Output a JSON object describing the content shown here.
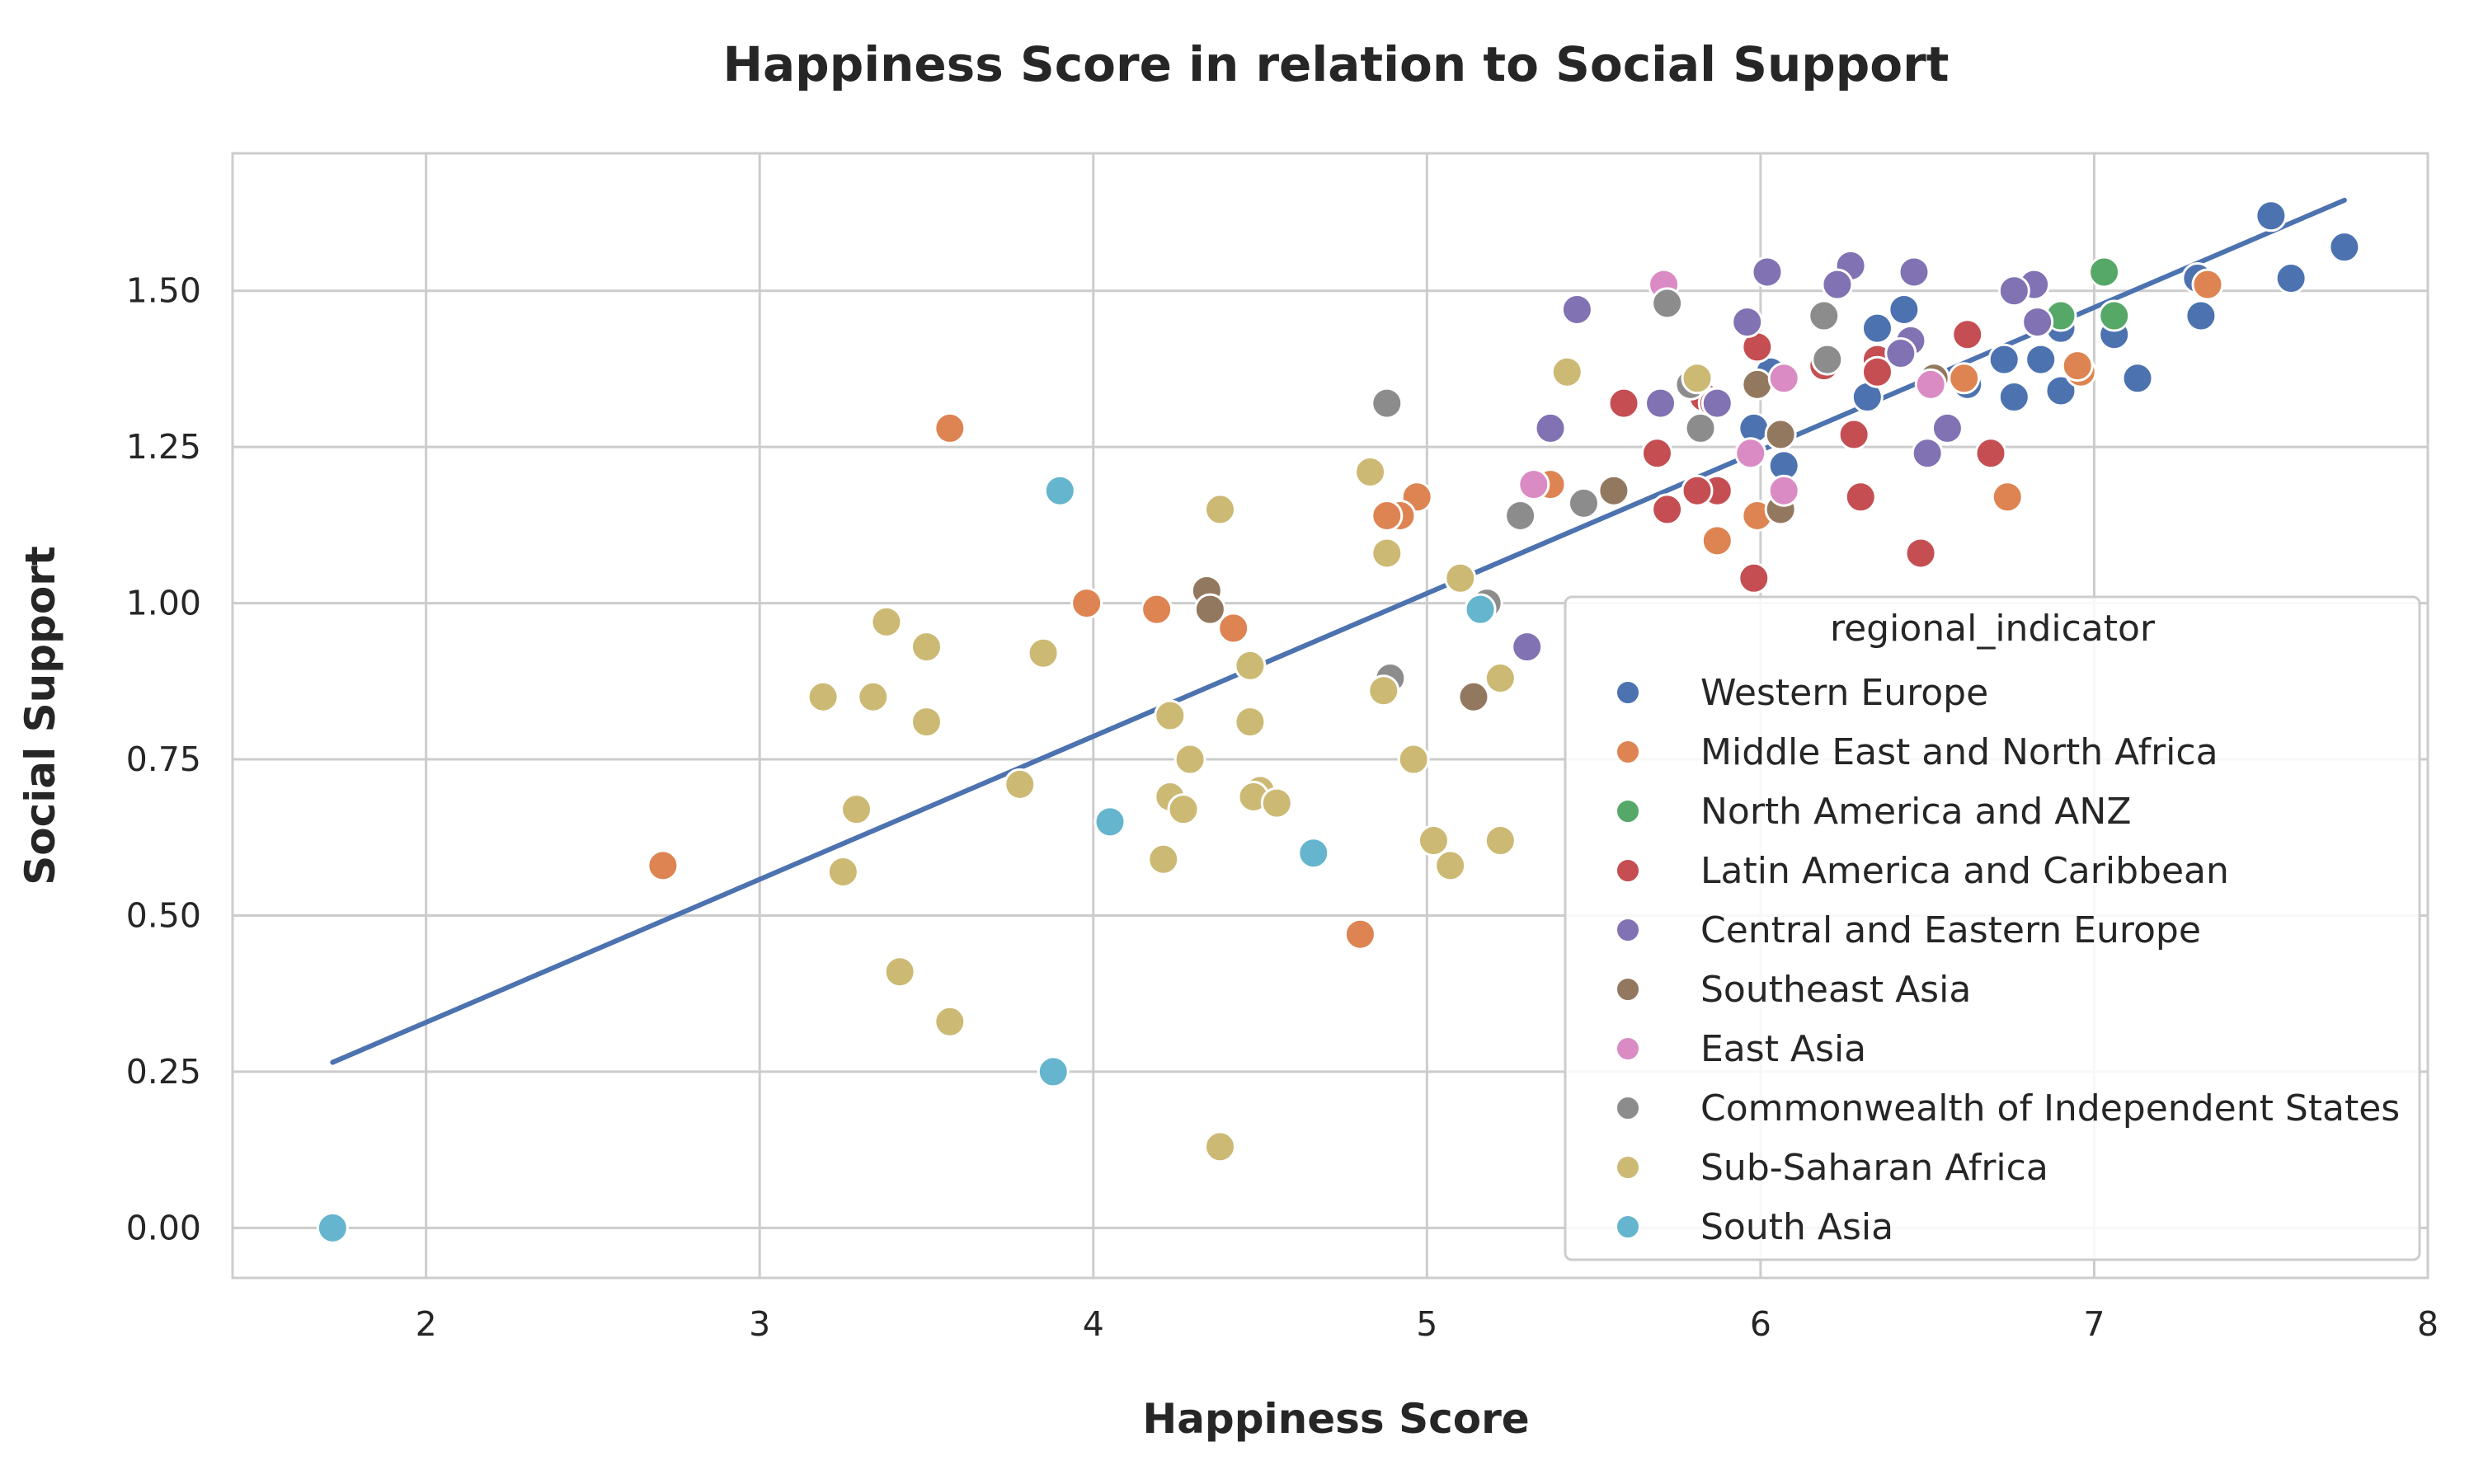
{
  "chart_data": {
    "type": "scatter",
    "title": "Happiness Score in relation to Social Support",
    "xlabel": "Happiness Score",
    "ylabel": "Social Support",
    "xlim": [
      1.42,
      8.0
    ],
    "ylim": [
      -0.08,
      1.72
    ],
    "x_ticks": [
      "2",
      "3",
      "4",
      "5",
      "6",
      "7",
      "8"
    ],
    "x_tick_values": [
      2,
      3,
      4,
      5,
      6,
      7,
      8
    ],
    "y_ticks": [
      "0.00",
      "0.25",
      "0.50",
      "0.75",
      "1.00",
      "1.25",
      "1.50"
    ],
    "y_tick_values": [
      0,
      0.25,
      0.5,
      0.75,
      1.0,
      1.25,
      1.5
    ],
    "grid": true,
    "legend": {
      "title": "regional_indicator",
      "placement": "lower-right"
    },
    "regression_line": {
      "x": [
        1.72,
        7.75
      ],
      "y": [
        0.265,
        1.645
      ],
      "color": "#4c72b0"
    },
    "series": [
      {
        "name": "Western Europe",
        "color": "#4c72b0",
        "points": [
          [
            7.53,
            1.62
          ],
          [
            7.75,
            1.57
          ],
          [
            7.59,
            1.52
          ],
          [
            7.31,
            1.52
          ],
          [
            7.32,
            1.46
          ],
          [
            7.06,
            1.43
          ],
          [
            6.9,
            1.44
          ],
          [
            6.43,
            1.47
          ],
          [
            6.35,
            1.44
          ],
          [
            6.84,
            1.39
          ],
          [
            6.73,
            1.39
          ],
          [
            6.76,
            1.33
          ],
          [
            6.9,
            1.34
          ],
          [
            6.62,
            1.35
          ],
          [
            6.32,
            1.33
          ],
          [
            6.03,
            1.37
          ],
          [
            6.07,
            1.22
          ],
          [
            5.98,
            1.28
          ],
          [
            7.13,
            1.36
          ]
        ]
      },
      {
        "name": "Middle East and North Africa",
        "color": "#dd8452",
        "points": [
          [
            7.34,
            1.51
          ],
          [
            6.96,
            1.37
          ],
          [
            6.95,
            1.38
          ],
          [
            6.61,
            1.36
          ],
          [
            6.74,
            1.17
          ],
          [
            5.99,
            1.14
          ],
          [
            5.87,
            1.1
          ],
          [
            5.37,
            1.19
          ],
          [
            4.97,
            1.17
          ],
          [
            4.92,
            1.14
          ],
          [
            4.88,
            1.14
          ],
          [
            4.42,
            0.96
          ],
          [
            4.19,
            0.99
          ],
          [
            3.98,
            1.0
          ],
          [
            3.57,
            1.28
          ],
          [
            2.71,
            0.58
          ],
          [
            4.8,
            0.47
          ]
        ]
      },
      {
        "name": "North America and ANZ",
        "color": "#55a868",
        "points": [
          [
            7.03,
            1.53
          ],
          [
            7.06,
            1.46
          ],
          [
            6.9,
            1.46
          ]
        ]
      },
      {
        "name": "Latin America and Caribbean",
        "color": "#c44e52",
        "points": [
          [
            6.62,
            1.43
          ],
          [
            6.35,
            1.39
          ],
          [
            6.35,
            1.37
          ],
          [
            6.19,
            1.38
          ],
          [
            5.99,
            1.41
          ],
          [
            5.83,
            1.33
          ],
          [
            5.86,
            1.32
          ],
          [
            5.59,
            1.32
          ],
          [
            5.69,
            1.24
          ],
          [
            5.87,
            1.18
          ],
          [
            5.81,
            1.18
          ],
          [
            5.72,
            1.15
          ],
          [
            6.28,
            1.27
          ],
          [
            6.3,
            1.17
          ],
          [
            6.48,
            1.08
          ],
          [
            6.69,
            1.24
          ],
          [
            5.98,
            1.04
          ]
        ]
      },
      {
        "name": "Central and Eastern Europe",
        "color": "#8172b3",
        "points": [
          [
            6.27,
            1.54
          ],
          [
            6.02,
            1.53
          ],
          [
            6.46,
            1.53
          ],
          [
            6.23,
            1.51
          ],
          [
            6.82,
            1.51
          ],
          [
            6.76,
            1.5
          ],
          [
            5.45,
            1.47
          ],
          [
            5.96,
            1.45
          ],
          [
            6.45,
            1.42
          ],
          [
            6.42,
            1.4
          ],
          [
            6.83,
            1.45
          ],
          [
            5.87,
            1.32
          ],
          [
            5.7,
            1.32
          ],
          [
            6.56,
            1.28
          ],
          [
            5.37,
            1.28
          ],
          [
            6.5,
            1.24
          ],
          [
            5.3,
            0.93
          ]
        ]
      },
      {
        "name": "Southeast Asia",
        "color": "#937860",
        "points": [
          [
            6.52,
            1.36
          ],
          [
            5.99,
            1.35
          ],
          [
            6.06,
            1.27
          ],
          [
            5.56,
            1.18
          ],
          [
            6.06,
            1.15
          ],
          [
            4.34,
            1.02
          ],
          [
            4.35,
            0.99
          ],
          [
            5.14,
            0.85
          ]
        ]
      },
      {
        "name": "East Asia",
        "color": "#da8bc3",
        "points": [
          [
            5.71,
            1.51
          ],
          [
            6.51,
            1.35
          ],
          [
            6.07,
            1.36
          ],
          [
            5.97,
            1.24
          ],
          [
            6.07,
            1.18
          ],
          [
            5.32,
            1.19
          ]
        ]
      },
      {
        "name": "Commonwealth of Independent States",
        "color": "#8c8c8c",
        "points": [
          [
            5.72,
            1.48
          ],
          [
            6.19,
            1.46
          ],
          [
            6.2,
            1.39
          ],
          [
            5.79,
            1.35
          ],
          [
            5.82,
            1.28
          ],
          [
            5.47,
            1.16
          ],
          [
            5.28,
            1.14
          ],
          [
            4.88,
            1.32
          ],
          [
            5.18,
            1.0
          ],
          [
            4.89,
            0.88
          ]
        ]
      },
      {
        "name": "Sub-Saharan Africa",
        "color": "#ccb974",
        "points": [
          [
            5.42,
            1.37
          ],
          [
            5.81,
            1.36
          ],
          [
            4.83,
            1.21
          ],
          [
            4.38,
            1.15
          ],
          [
            4.88,
            1.08
          ],
          [
            5.1,
            1.04
          ],
          [
            3.38,
            0.97
          ],
          [
            3.5,
            0.93
          ],
          [
            3.85,
            0.92
          ],
          [
            4.47,
            0.9
          ],
          [
            5.22,
            0.88
          ],
          [
            4.87,
            0.86
          ],
          [
            3.19,
            0.85
          ],
          [
            3.34,
            0.85
          ],
          [
            4.23,
            0.82
          ],
          [
            3.5,
            0.81
          ],
          [
            4.47,
            0.81
          ],
          [
            4.29,
            0.75
          ],
          [
            4.96,
            0.75
          ],
          [
            3.78,
            0.71
          ],
          [
            4.5,
            0.7
          ],
          [
            4.23,
            0.69
          ],
          [
            4.48,
            0.69
          ],
          [
            4.55,
            0.68
          ],
          [
            4.27,
            0.67
          ],
          [
            3.29,
            0.67
          ],
          [
            5.02,
            0.62
          ],
          [
            5.22,
            0.62
          ],
          [
            4.21,
            0.59
          ],
          [
            5.07,
            0.58
          ],
          [
            3.25,
            0.57
          ],
          [
            3.42,
            0.41
          ],
          [
            3.57,
            0.33
          ],
          [
            4.38,
            0.13
          ]
        ]
      },
      {
        "name": "South Asia",
        "color": "#64b5cd",
        "points": [
          [
            3.9,
            1.18
          ],
          [
            5.16,
            0.99
          ],
          [
            4.05,
            0.65
          ],
          [
            4.66,
            0.6
          ],
          [
            3.88,
            0.25
          ],
          [
            1.72,
            0.0
          ]
        ]
      }
    ]
  }
}
